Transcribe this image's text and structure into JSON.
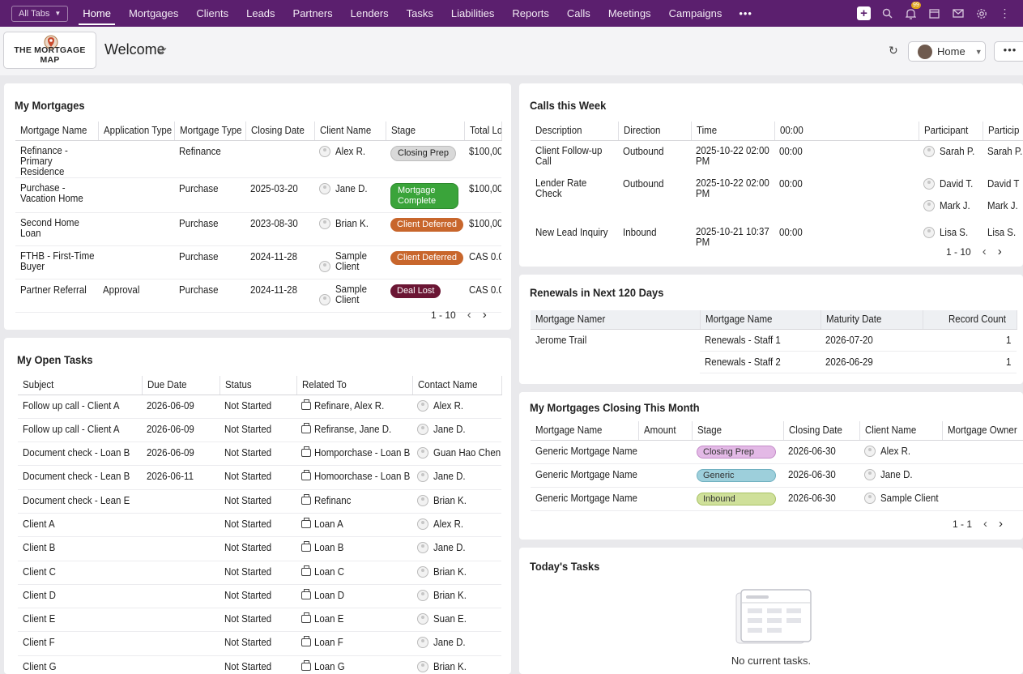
{
  "nav": {
    "all_tabs": "All Tabs",
    "tabs": [
      "Home",
      "Mortgages",
      "Clients",
      "Leads",
      "Partners",
      "Lenders",
      "Tasks",
      "Liabilities",
      "Reports",
      "Calls",
      "Meetings",
      "Campaigns"
    ],
    "more": "•••",
    "notif_count": "99",
    "menu_more": "⋮"
  },
  "header": {
    "logo_text": "THE MORTGAGE MAP",
    "title": "Welcome",
    "home_btn": "Home",
    "more": "•••"
  },
  "my_mortgages": {
    "title": "My Mortgages",
    "columns": [
      "Mortgage Name",
      "Application Type",
      "Mortgage Type",
      "Closing Date",
      "Client Name",
      "Stage",
      "Total Lo"
    ],
    "rows": [
      {
        "name": "Refinance - Primary Residence",
        "app": "",
        "type": "Refinance",
        "date": "",
        "client": "Alex R.",
        "stage": "Closing Prep",
        "total": "$100,00"
      },
      {
        "name": "Purchase - Vacation Home",
        "app": "",
        "type": "Purchase",
        "date": "2025-03-20",
        "client": "Jane D.",
        "stage": "Mortgage Complete",
        "total": "$100,00"
      },
      {
        "name": "Second Home Loan",
        "app": "",
        "type": "Purchase",
        "date": "2023-08-30",
        "client": "Brian K.",
        "stage": "Client Deferred",
        "total": "$100,00"
      },
      {
        "name": "FTHB - First-Time Buyer",
        "app": "",
        "type": "Purchase",
        "date": "2024-11-28",
        "client": "Sample Client",
        "stage": "Client Deferred",
        "total": "CAS 0.0"
      },
      {
        "name": "Partner Referral",
        "app": "Approval",
        "type": "Purchase",
        "date": "2024-11-28",
        "client": "Sample Client",
        "stage": "Deal Lost",
        "total": "CAS 0.0"
      }
    ],
    "pager": "1 - 10"
  },
  "calls": {
    "title": "Calls this Week",
    "columns": [
      "Description",
      "Direction",
      "Time",
      "00:00",
      "Participant",
      "Particip"
    ],
    "rows": [
      {
        "desc": "Client Follow-up Call",
        "dir": "Outbound",
        "time": "2025-10-22 02:00 PM",
        "dur": "00:00",
        "parts": [
          [
            "Sarah P.",
            "Sarah P."
          ]
        ]
      },
      {
        "desc": "Lender Rate Check",
        "dir": "Outbound",
        "time": "2025-10-22 02:00 PM",
        "dur": "00:00",
        "parts": [
          [
            "David T.",
            "David T"
          ],
          [
            "Mark J.",
            "Mark J."
          ]
        ]
      },
      {
        "desc": "New Lead Inquiry",
        "dir": "Inbound",
        "time": "2025-10-21 10:37 PM",
        "dur": "00:00",
        "parts": [
          [
            "Lisa S.",
            "Lisa S."
          ]
        ]
      }
    ],
    "pager": "1 - 10"
  },
  "renewals": {
    "title": "Renewals in Next 120 Days",
    "columns": [
      "Mortgage Namer",
      "Mortgage Name",
      "Maturity Date",
      "Record Count"
    ],
    "group": "Jerome Trail",
    "rows": [
      {
        "name": "Renewals - Staff 1",
        "date": "2026-07-20",
        "count": "1"
      },
      {
        "name": "Renewals - Staff 2",
        "date": "2026-06-29",
        "count": "1"
      }
    ]
  },
  "open_tasks": {
    "title": "My Open Tasks",
    "columns": [
      "Subject",
      "Due Date",
      "Status",
      "Related To",
      "Contact Name"
    ],
    "rows": [
      {
        "subject": "Follow up call - Client A",
        "due": "2026-06-09",
        "status": "Not Started",
        "related": "Refinare, Alex R.",
        "contact": "Alex R."
      },
      {
        "subject": "Follow up call - Client A",
        "due": "2026-06-09",
        "status": "Not Started",
        "related": "Refiranse, Jane D.",
        "contact": "Jane D."
      },
      {
        "subject": "Document check - Loan B",
        "due": "2026-06-09",
        "status": "Not Started",
        "related": "Homporchase - Loan B",
        "contact": "Guan Hao Chen"
      },
      {
        "subject": "Document check - Lean B",
        "due": "2026-06-11",
        "status": "Not Started",
        "related": "Homoorchase - Loan B",
        "contact": "Jane D."
      },
      {
        "subject": "Document check - Lean E",
        "due": "",
        "status": "Not Started",
        "related": "Refinanc",
        "contact": "Brian K."
      },
      {
        "subject": "Client A",
        "due": "",
        "status": "Not Started",
        "related": "Loan A",
        "contact": "Alex R."
      },
      {
        "subject": "Client B",
        "due": "",
        "status": "Not Started",
        "related": "Loan B",
        "contact": "Jane D."
      },
      {
        "subject": "Client C",
        "due": "",
        "status": "Not Started",
        "related": "Loan C",
        "contact": "Brian K."
      },
      {
        "subject": "Client D",
        "due": "",
        "status": "Not Started",
        "related": "Loan D",
        "contact": "Brian K."
      },
      {
        "subject": "Client E",
        "due": "",
        "status": "Not Started",
        "related": "Loan E",
        "contact": "Suan E."
      },
      {
        "subject": "Client F",
        "due": "",
        "status": "Not Started",
        "related": "Loan F",
        "contact": "Jane D."
      },
      {
        "subject": "Client G",
        "due": "",
        "status": "Not Started",
        "related": "Loan G",
        "contact": "Brian K."
      }
    ]
  },
  "closing": {
    "title": "My Mortgages Closing This Month",
    "columns": [
      "Mortgage Name",
      "Amount",
      "Stage",
      "Closing Date",
      "Client Name",
      "Mortgage Owner"
    ],
    "rows": [
      {
        "name": "Generic Mortgage Name",
        "amount": "",
        "stage": "Closing Prep",
        "date": "2026-06-30",
        "client": "Alex R.",
        "owner": ""
      },
      {
        "name": "Generic Mortgage Name",
        "amount": "",
        "stage": "Generic",
        "date": "2026-06-30",
        "client": "Jane D.",
        "owner": ""
      },
      {
        "name": "Generic Mortgage Name",
        "amount": "",
        "stage": "Inbound",
        "date": "2026-06-30",
        "client": "Sample Client",
        "owner": ""
      }
    ],
    "pager": "1 - 1"
  },
  "today": {
    "title": "Today's Tasks",
    "empty": "No current tasks."
  }
}
